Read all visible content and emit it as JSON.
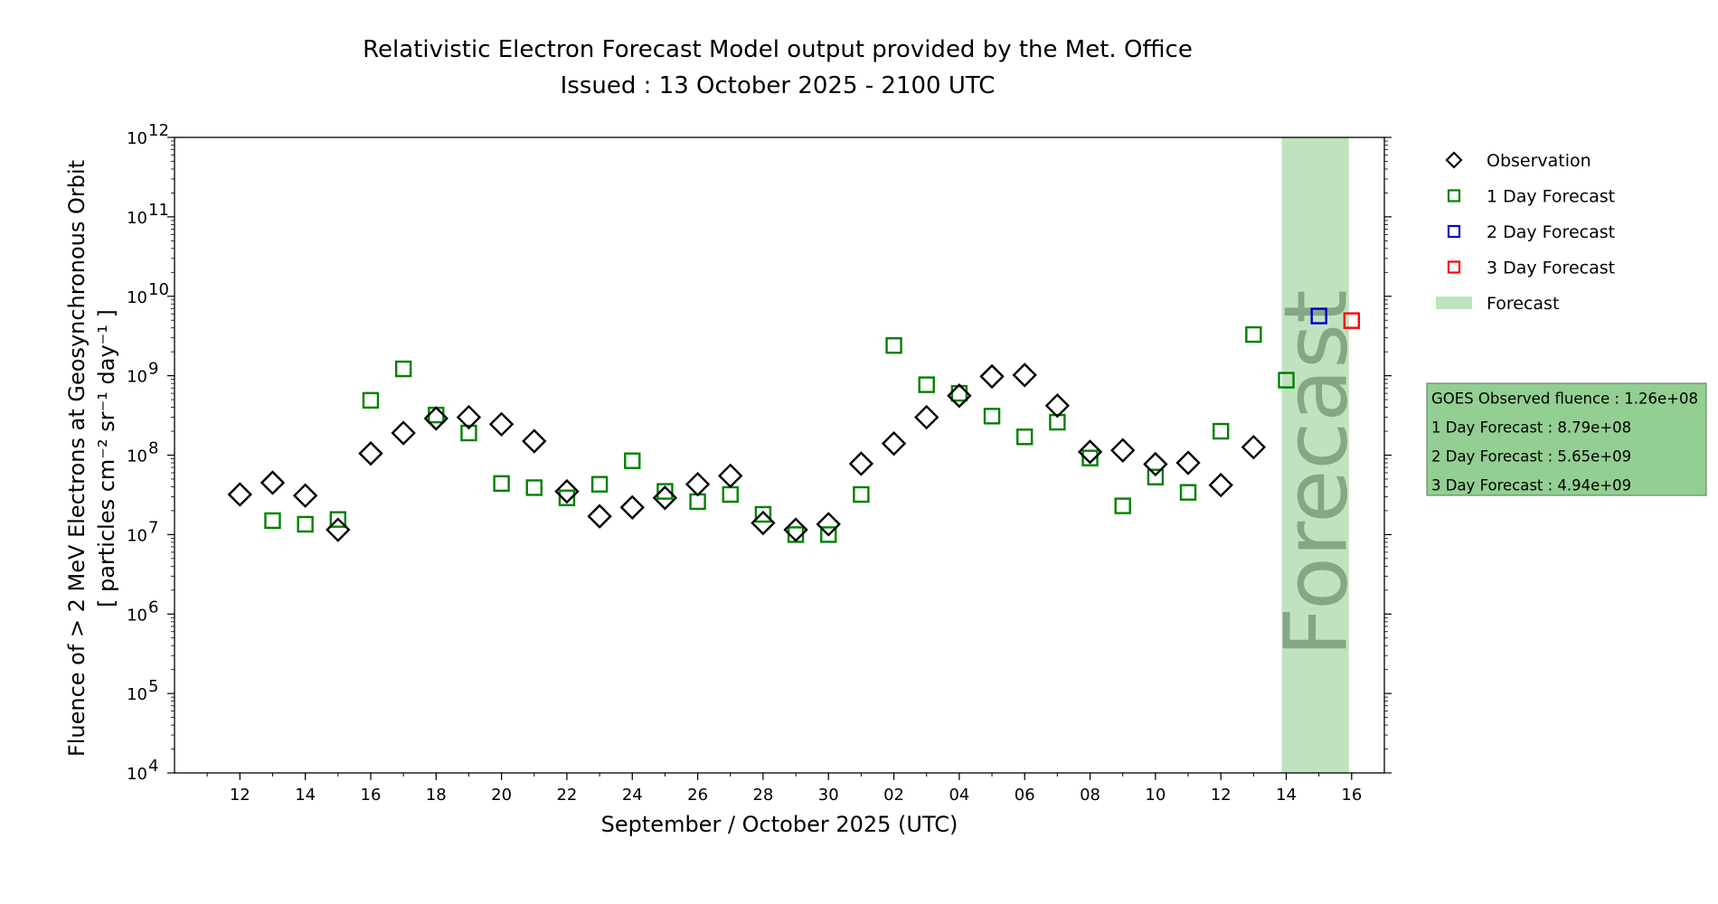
{
  "chart_data": {
    "type": "scatter",
    "title": "Relativistic Electron Forecast Model output provided by the Met. Office",
    "subtitle": "Issued : 13 October 2025 - 2100 UTC",
    "xlabel": "September / October 2025 (UTC)",
    "ylabel_line1": "Fluence of > 2 MeV Electrons at Geosynchronous Orbit",
    "ylabel_line2": "[ particles cm⁻² sr⁻¹ day⁻¹ ]",
    "y_scale": "log",
    "ylim": [
      10000,
      1000000000000
    ],
    "xlim": [
      "2025-09-10",
      "2025-10-17"
    ],
    "grid": false,
    "legend_placement": "outside-right",
    "y_ticks": [
      {
        "base": "10",
        "exp": "4",
        "value": 10000
      },
      {
        "base": "10",
        "exp": "5",
        "value": 100000
      },
      {
        "base": "10",
        "exp": "6",
        "value": 1000000
      },
      {
        "base": "10",
        "exp": "7",
        "value": 10000000
      },
      {
        "base": "10",
        "exp": "8",
        "value": 100000000
      },
      {
        "base": "10",
        "exp": "9",
        "value": 1000000000
      },
      {
        "base": "10",
        "exp": "10",
        "value": 10000000000
      },
      {
        "base": "10",
        "exp": "11",
        "value": 100000000000
      },
      {
        "base": "10",
        "exp": "12",
        "value": 1000000000000
      }
    ],
    "x_ticks": [
      {
        "label": "12",
        "date": "2025-09-12"
      },
      {
        "label": "14",
        "date": "2025-09-14"
      },
      {
        "label": "16",
        "date": "2025-09-16"
      },
      {
        "label": "18",
        "date": "2025-09-18"
      },
      {
        "label": "20",
        "date": "2025-09-20"
      },
      {
        "label": "22",
        "date": "2025-09-22"
      },
      {
        "label": "24",
        "date": "2025-09-24"
      },
      {
        "label": "26",
        "date": "2025-09-26"
      },
      {
        "label": "28",
        "date": "2025-09-28"
      },
      {
        "label": "30",
        "date": "2025-09-30"
      },
      {
        "label": "02",
        "date": "2025-10-02"
      },
      {
        "label": "04",
        "date": "2025-10-04"
      },
      {
        "label": "06",
        "date": "2025-10-06"
      },
      {
        "label": "08",
        "date": "2025-10-08"
      },
      {
        "label": "10",
        "date": "2025-10-10"
      },
      {
        "label": "12",
        "date": "2025-10-12"
      },
      {
        "label": "14",
        "date": "2025-10-14"
      },
      {
        "label": "16",
        "date": "2025-10-16"
      }
    ],
    "forecast_region": {
      "start": "2025-10-14",
      "end": "2025-10-16",
      "label": "Forecast",
      "color": "#bfe3bf"
    },
    "series": [
      {
        "name": "Observation",
        "marker": "diamond",
        "color": "#000000",
        "points": [
          {
            "x": "2025-09-12",
            "y": 32000000
          },
          {
            "x": "2025-09-13",
            "y": 45000000
          },
          {
            "x": "2025-09-14",
            "y": 31000000
          },
          {
            "x": "2025-09-15",
            "y": 11500000
          },
          {
            "x": "2025-09-16",
            "y": 105000000
          },
          {
            "x": "2025-09-17",
            "y": 190000000
          },
          {
            "x": "2025-09-18",
            "y": 290000000
          },
          {
            "x": "2025-09-19",
            "y": 300000000
          },
          {
            "x": "2025-09-20",
            "y": 245000000
          },
          {
            "x": "2025-09-21",
            "y": 150000000
          },
          {
            "x": "2025-09-22",
            "y": 35000000
          },
          {
            "x": "2025-09-23",
            "y": 17000000
          },
          {
            "x": "2025-09-24",
            "y": 22000000
          },
          {
            "x": "2025-09-25",
            "y": 29000000
          },
          {
            "x": "2025-09-26",
            "y": 43000000
          },
          {
            "x": "2025-09-27",
            "y": 55000000
          },
          {
            "x": "2025-09-28",
            "y": 14000000
          },
          {
            "x": "2025-09-29",
            "y": 11500000
          },
          {
            "x": "2025-09-30",
            "y": 13500000
          },
          {
            "x": "2025-10-01",
            "y": 78000000
          },
          {
            "x": "2025-10-02",
            "y": 140000000
          },
          {
            "x": "2025-10-03",
            "y": 300000000
          },
          {
            "x": "2025-10-04",
            "y": 560000000
          },
          {
            "x": "2025-10-05",
            "y": 980000000
          },
          {
            "x": "2025-10-06",
            "y": 1020000000
          },
          {
            "x": "2025-10-07",
            "y": 420000000
          },
          {
            "x": "2025-10-08",
            "y": 110000000
          },
          {
            "x": "2025-10-09",
            "y": 115000000
          },
          {
            "x": "2025-10-10",
            "y": 77000000
          },
          {
            "x": "2025-10-11",
            "y": 80000000
          },
          {
            "x": "2025-10-12",
            "y": 42000000
          },
          {
            "x": "2025-10-13",
            "y": 126000000
          }
        ]
      },
      {
        "name": "1 Day Forecast",
        "marker": "square",
        "color": "#008000",
        "points": [
          {
            "x": "2025-09-13",
            "y": 15000000
          },
          {
            "x": "2025-09-14",
            "y": 13500000
          },
          {
            "x": "2025-09-15",
            "y": 15500000
          },
          {
            "x": "2025-09-16",
            "y": 490000000
          },
          {
            "x": "2025-09-17",
            "y": 1220000000
          },
          {
            "x": "2025-09-18",
            "y": 320000000
          },
          {
            "x": "2025-09-19",
            "y": 190000000
          },
          {
            "x": "2025-09-20",
            "y": 44000000
          },
          {
            "x": "2025-09-21",
            "y": 39000000
          },
          {
            "x": "2025-09-22",
            "y": 29000000
          },
          {
            "x": "2025-09-23",
            "y": 43000000
          },
          {
            "x": "2025-09-24",
            "y": 85000000
          },
          {
            "x": "2025-09-25",
            "y": 35000000
          },
          {
            "x": "2025-09-26",
            "y": 26000000
          },
          {
            "x": "2025-09-27",
            "y": 32000000
          },
          {
            "x": "2025-09-28",
            "y": 18000000
          },
          {
            "x": "2025-09-29",
            "y": 10000000
          },
          {
            "x": "2025-09-30",
            "y": 10000000
          },
          {
            "x": "2025-10-01",
            "y": 32000000
          },
          {
            "x": "2025-10-02",
            "y": 2400000000
          },
          {
            "x": "2025-10-03",
            "y": 770000000
          },
          {
            "x": "2025-10-04",
            "y": 600000000
          },
          {
            "x": "2025-10-05",
            "y": 310000000
          },
          {
            "x": "2025-10-06",
            "y": 170000000
          },
          {
            "x": "2025-10-07",
            "y": 260000000
          },
          {
            "x": "2025-10-08",
            "y": 92000000
          },
          {
            "x": "2025-10-09",
            "y": 23000000
          },
          {
            "x": "2025-10-10",
            "y": 53000000
          },
          {
            "x": "2025-10-11",
            "y": 34000000
          },
          {
            "x": "2025-10-12",
            "y": 200000000
          },
          {
            "x": "2025-10-13",
            "y": 3300000000
          },
          {
            "x": "2025-10-14",
            "y": 879000000
          }
        ]
      },
      {
        "name": "2 Day Forecast",
        "marker": "square",
        "color": "#0000cc",
        "points": [
          {
            "x": "2025-10-15",
            "y": 5650000000
          }
        ]
      },
      {
        "name": "3 Day Forecast",
        "marker": "square",
        "color": "#ff0000",
        "points": [
          {
            "x": "2025-10-16",
            "y": 4940000000
          }
        ]
      }
    ],
    "legend": [
      {
        "label": "Observation",
        "marker": "diamond",
        "color": "#000000"
      },
      {
        "label": "1 Day Forecast",
        "marker": "square",
        "color": "#008000"
      },
      {
        "label": "2 Day Forecast",
        "marker": "square",
        "color": "#0000cc"
      },
      {
        "label": "3 Day Forecast",
        "marker": "square",
        "color": "#ff0000"
      },
      {
        "label": "Forecast",
        "marker": "patch",
        "color": "#bfe3bf"
      }
    ],
    "info_box": {
      "background": "#93ce93",
      "lines": [
        "GOES Observed fluence : 1.26e+08",
        "1 Day Forecast : 8.79e+08",
        "2 Day Forecast : 5.65e+09",
        "3 Day Forecast : 4.94e+09"
      ]
    }
  }
}
